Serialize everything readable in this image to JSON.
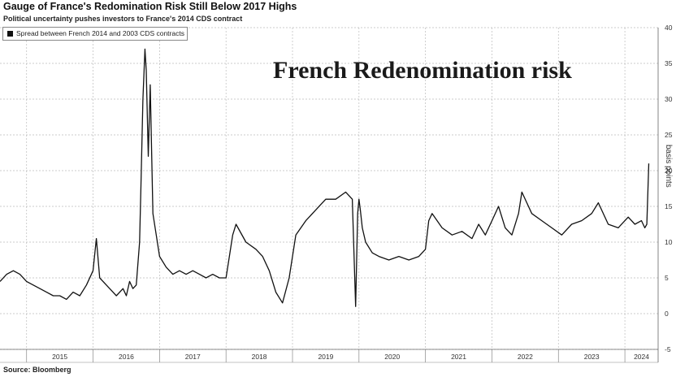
{
  "chart_data": {
    "type": "line",
    "title": "Gauge of France's Redomination Risk Still Below 2017 Highs",
    "subtitle": "Political uncertainty pushes investors to France's 2014 CDS contract",
    "source": "Source: Bloomberg",
    "annotation": "French Redenomination risk",
    "ylabel": "basis points",
    "ylim": [
      -5,
      40
    ],
    "yticks": [
      -5,
      0,
      5,
      10,
      15,
      20,
      25,
      30,
      35,
      40
    ],
    "xlim": [
      2014.6,
      2024.5
    ],
    "xticks": [
      "2015",
      "2016",
      "2017",
      "2018",
      "2019",
      "2020",
      "2021",
      "2022",
      "2023",
      "2024"
    ],
    "grid": true,
    "legend_position": "top-left",
    "series": [
      {
        "name": "Spread between French 2014 and 2003 CDS contracts",
        "color": "#111111",
        "x": [
          2014.6,
          2014.7,
          2014.8,
          2014.9,
          2015.0,
          2015.1,
          2015.2,
          2015.3,
          2015.4,
          2015.5,
          2015.6,
          2015.7,
          2015.8,
          2015.9,
          2016.0,
          2016.05,
          2016.1,
          2016.2,
          2016.3,
          2016.35,
          2016.45,
          2016.5,
          2016.55,
          2016.6,
          2016.65,
          2016.7,
          2016.72,
          2016.75,
          2016.78,
          2016.8,
          2016.83,
          2016.86,
          2016.9,
          2016.95,
          2017.0,
          2017.1,
          2017.2,
          2017.3,
          2017.4,
          2017.5,
          2017.6,
          2017.7,
          2017.8,
          2017.9,
          2018.0,
          2018.05,
          2018.1,
          2018.15,
          2018.3,
          2018.45,
          2018.55,
          2018.65,
          2018.75,
          2018.85,
          2018.95,
          2019.05,
          2019.2,
          2019.35,
          2019.5,
          2019.65,
          2019.8,
          2019.9,
          2019.95,
          2019.98,
          2020.0,
          2020.02,
          2020.05,
          2020.1,
          2020.2,
          2020.3,
          2020.45,
          2020.6,
          2020.75,
          2020.9,
          2021.0,
          2021.05,
          2021.1,
          2021.25,
          2021.4,
          2021.55,
          2021.7,
          2021.8,
          2021.9,
          2022.0,
          2022.1,
          2022.2,
          2022.3,
          2022.4,
          2022.45,
          2022.6,
          2022.75,
          2022.9,
          2023.05,
          2023.2,
          2023.35,
          2023.5,
          2023.6,
          2023.75,
          2023.9,
          2024.05,
          2024.15,
          2024.25,
          2024.3,
          2024.33,
          2024.36
        ],
        "values": [
          4.5,
          5.5,
          6.0,
          5.5,
          4.5,
          4.0,
          3.5,
          3.0,
          2.5,
          2.5,
          2.0,
          3.0,
          2.5,
          4.0,
          6.0,
          10.5,
          5.0,
          4.0,
          3.0,
          2.5,
          3.5,
          2.5,
          4.5,
          3.5,
          4.0,
          10.0,
          18.0,
          30.0,
          37.0,
          34.0,
          22.0,
          32.0,
          14.0,
          11.0,
          8.0,
          6.5,
          5.5,
          6.0,
          5.5,
          6.0,
          5.5,
          5.0,
          5.5,
          5.0,
          5.0,
          8.0,
          11.0,
          12.5,
          10.0,
          9.0,
          8.0,
          6.0,
          3.0,
          1.5,
          5.0,
          11.0,
          13.0,
          14.5,
          16.0,
          16.0,
          17.0,
          16.0,
          1.0,
          14.0,
          16.0,
          14.5,
          12.0,
          10.0,
          8.5,
          8.0,
          7.5,
          8.0,
          7.5,
          8.0,
          9.0,
          13.0,
          14.0,
          12.0,
          11.0,
          11.5,
          10.5,
          12.5,
          11.0,
          13.0,
          15.0,
          12.0,
          11.0,
          14.0,
          17.0,
          14.0,
          13.0,
          12.0,
          11.0,
          12.5,
          13.0,
          14.0,
          15.5,
          12.5,
          12.0,
          13.5,
          12.5,
          13.0,
          12.0,
          12.5,
          21.0
        ]
      }
    ]
  }
}
